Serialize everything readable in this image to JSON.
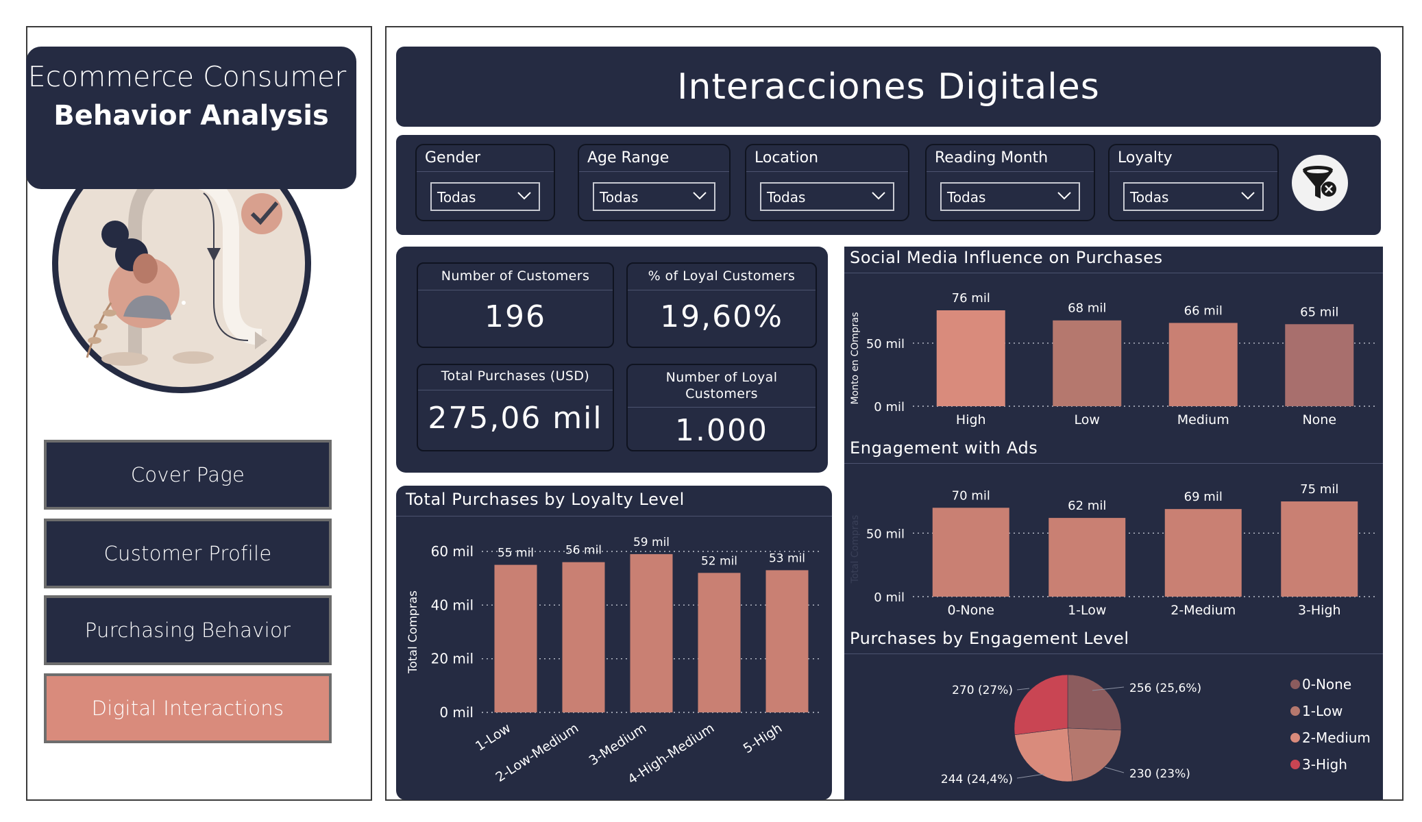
{
  "brand": {
    "line1": "Ecommerce Consumer",
    "line2": "Behavior Analysis"
  },
  "nav": [
    {
      "label": "Cover Page",
      "active": false
    },
    {
      "label": "Customer Profile",
      "active": false
    },
    {
      "label": "Purchasing Behavior",
      "active": false
    },
    {
      "label": "Digital Interactions",
      "active": true
    }
  ],
  "page_title": "Interacciones Digitales",
  "filters": [
    {
      "label": "Gender",
      "value": "Todas"
    },
    {
      "label": "Age Range",
      "value": "Todas"
    },
    {
      "label": "Location",
      "value": "Todas"
    },
    {
      "label": "Reading Month",
      "value": "Todas"
    },
    {
      "label": "Loyalty",
      "value": "Todas"
    }
  ],
  "kpis": {
    "customers": {
      "label": "Number of Customers",
      "value": "196"
    },
    "loyal_pct": {
      "label": "% of Loyal Customers",
      "value": "19,60%"
    },
    "total_purchases": {
      "label": "Total Purchases (USD)",
      "value": "275,06 mil"
    },
    "loyal_count": {
      "label_line1": "Number of Loyal",
      "label_line2": "Customers",
      "value": "1.000"
    }
  },
  "colors": {
    "navy": "#252b42",
    "bar": "#c98073",
    "accent": "#d98b7c",
    "pie": [
      "#8c5c5e",
      "#b5786e",
      "#d98b7c",
      "#c94553"
    ]
  },
  "chart_data": [
    {
      "type": "bar",
      "title": "Total Purchases by Loyalty Level",
      "ylabel": "Total Compras",
      "categories": [
        "1-Low",
        "2-Low-Medium",
        "3-Medium",
        "4-High-Medium",
        "5-High"
      ],
      "values": [
        55,
        56,
        59,
        52,
        53
      ],
      "data_labels": [
        "55 mil",
        "56 mil",
        "59 mil",
        "52 mil",
        "53 mil"
      ],
      "yticks": [
        "0 mil",
        "20 mil",
        "40 mil",
        "60 mil"
      ],
      "ylim": [
        0,
        60
      ]
    },
    {
      "type": "bar",
      "title": "Social Media Influence on Purchases",
      "ylabel": "Monto en COmpras",
      "categories": [
        "High",
        "Low",
        "Medium",
        "None"
      ],
      "values": [
        76,
        68,
        66,
        65
      ],
      "data_labels": [
        "76 mil",
        "68 mil",
        "66 mil",
        "65 mil"
      ],
      "yticks": [
        "0 mil",
        "50 mil"
      ],
      "ylim": [
        0,
        76
      ],
      "colors": [
        "#d98b7c",
        "#b5786e",
        "#c98073",
        "#a86f6d"
      ]
    },
    {
      "type": "bar",
      "title": "Engagement with Ads",
      "ylabel": "Total Compras",
      "categories": [
        "0-None",
        "1-Low",
        "2-Medium",
        "3-High"
      ],
      "values": [
        70,
        62,
        69,
        75
      ],
      "data_labels": [
        "70 mil",
        "62 mil",
        "69 mil",
        "75 mil"
      ],
      "yticks": [
        "0 mil",
        "50 mil"
      ],
      "ylim": [
        0,
        75
      ]
    },
    {
      "type": "pie",
      "title": "Purchases by Engagement Level",
      "categories": [
        "0-None",
        "1-Low",
        "2-Medium",
        "3-High"
      ],
      "values": [
        256,
        230,
        244,
        270
      ],
      "data_labels": [
        "256 (25,6%)",
        "230 (23%)",
        "244 (24,4%)",
        "270 (27%)"
      ],
      "legend_position": "right"
    }
  ]
}
